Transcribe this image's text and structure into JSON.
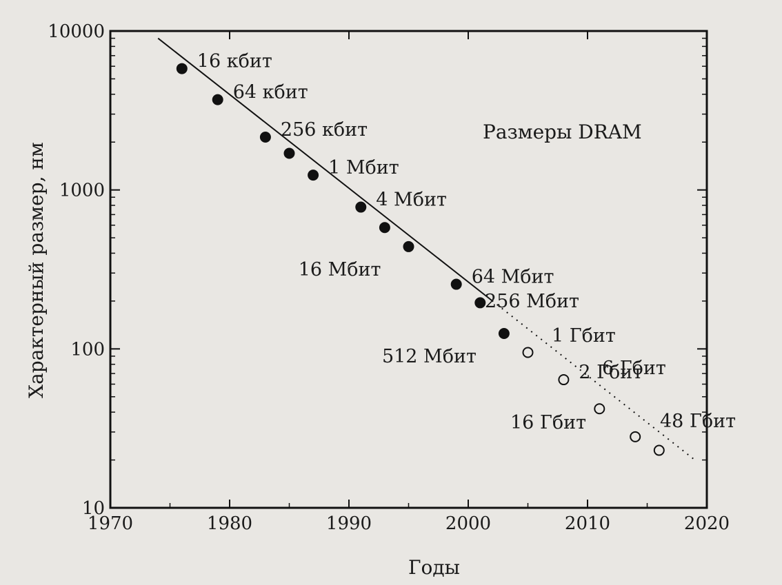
{
  "chart_data": {
    "type": "scatter",
    "title": "Размеры DRAM",
    "xlabel": "Годы",
    "ylabel": "Характерный размер, нм",
    "xlim": [
      1970,
      2020
    ],
    "ylim": [
      10,
      10000
    ],
    "y_scale": "log",
    "grid": false,
    "x_ticks": [
      "1970",
      "1980",
      "1990",
      "2000",
      "2010",
      "2020"
    ],
    "y_ticks": [
      "10",
      "100",
      "1000",
      "10000"
    ],
    "trend_line": {
      "from": [
        1974,
        9000
      ],
      "to": [
        2019,
        20
      ],
      "solid_until_year": 2002
    },
    "points": [
      {
        "x": 1976,
        "y": 5800,
        "label": "16 кбит",
        "projected": false
      },
      {
        "x": 1979,
        "y": 3700,
        "label": "64 кбит",
        "projected": false
      },
      {
        "x": 1983,
        "y": 2150,
        "label": "256 кбит",
        "projected": false
      },
      {
        "x": 1985,
        "y": 1700,
        "label": "",
        "projected": false
      },
      {
        "x": 1987,
        "y": 1240,
        "label": "1 Мбит",
        "projected": false
      },
      {
        "x": 1991,
        "y": 780,
        "label": "4 Мбит",
        "projected": false
      },
      {
        "x": 1993,
        "y": 580,
        "label": "",
        "projected": false
      },
      {
        "x": 1995,
        "y": 440,
        "label": "16 Мбит",
        "projected": false
      },
      {
        "x": 1999,
        "y": 255,
        "label": "64 Мбит",
        "projected": false
      },
      {
        "x": 2001,
        "y": 195,
        "label": "",
        "projected": false
      },
      {
        "x": 2003,
        "y": 125,
        "label": "512 Мбит",
        "projected": false
      },
      {
        "x": 2005,
        "y": 95,
        "label": "",
        "projected": true
      },
      {
        "x": 2008,
        "y": 64,
        "label": "2 Гбит",
        "projected": true
      },
      {
        "x": 2011,
        "y": 42,
        "label": "",
        "projected": true
      },
      {
        "x": 2014,
        "y": 28,
        "label": "",
        "projected": true
      },
      {
        "x": 2016,
        "y": 23,
        "label": "",
        "projected": true
      }
    ],
    "annotations": [
      "256 Мбит",
      "1 Гбит",
      "6 Гбит",
      "16 Гбит",
      "48 Гбит"
    ]
  }
}
